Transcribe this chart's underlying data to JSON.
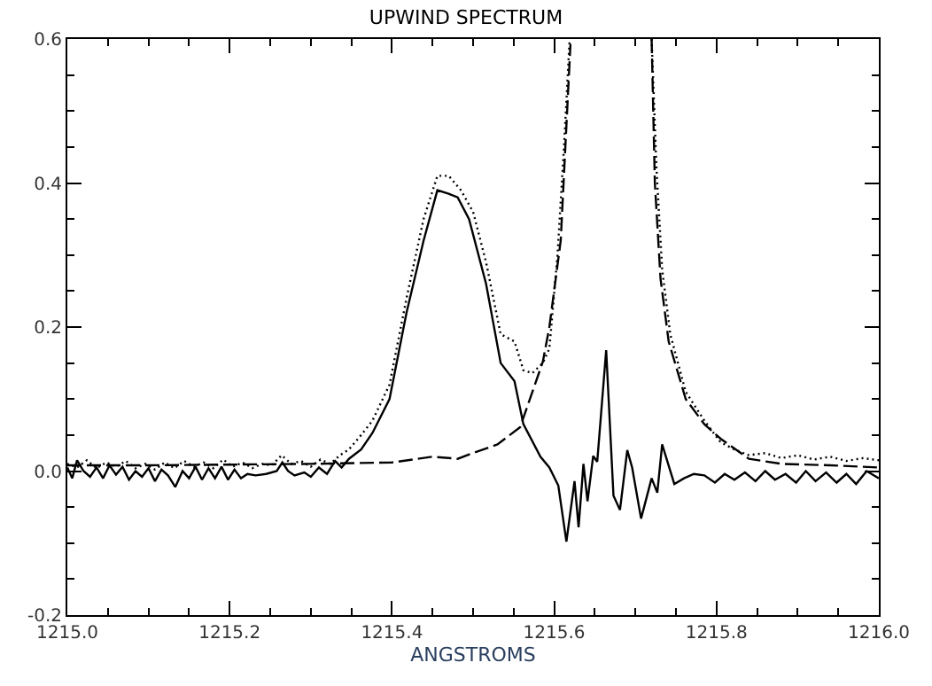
{
  "chart_data": {
    "type": "line",
    "title": "UPWIND SPECTRUM",
    "xlabel": "ANGSTROMS",
    "xlim": [
      1215.0,
      1216.0
    ],
    "xticks": [
      {
        "value": 1215.0,
        "label": "1215.0"
      },
      1215.2,
      1215.4,
      1215.6,
      1215.8,
      {
        "value": 1216.0,
        "label": "1216.0"
      }
    ],
    "ylim": [
      -0.2,
      0.6
    ],
    "yticks": [
      -0.2,
      {
        "value": 0.0,
        "label": "0.0"
      },
      0.2,
      0.4,
      0.6
    ],
    "marker": "none",
    "series": [
      {
        "color": "#000000",
        "line_style": "solid",
        "x": [
          1215.0,
          1215.006,
          1215.012,
          1215.02,
          1215.028,
          1215.036,
          1215.044,
          1215.052,
          1215.06,
          1215.068,
          1215.076,
          1215.084,
          1215.092,
          1215.1,
          1215.108,
          1215.116,
          1215.124,
          1215.133,
          1215.142,
          1215.15,
          1215.158,
          1215.166,
          1215.174,
          1215.182,
          1215.19,
          1215.198,
          1215.206,
          1215.214,
          1215.222,
          1215.232,
          1215.245,
          1215.258,
          1215.265,
          1215.272,
          1215.28,
          1215.292,
          1215.3,
          1215.31,
          1215.32,
          1215.33,
          1215.338,
          1215.347,
          1215.362,
          1215.376,
          1215.397,
          1215.418,
          1215.439,
          1215.456,
          1215.47,
          1215.481,
          1215.495,
          1215.516,
          1215.534,
          1215.551,
          1215.562,
          1215.583,
          1215.594,
          1215.605,
          1215.615,
          1215.625,
          1215.63,
          1215.636,
          1215.641,
          1215.648,
          1215.653,
          1215.664,
          1215.673,
          1215.681,
          1215.69,
          1215.696,
          1215.707,
          1215.72,
          1215.727,
          1215.733,
          1215.748,
          1215.76,
          1215.772,
          1215.785,
          1215.798,
          1215.81,
          1215.822,
          1215.835,
          1215.848,
          1215.86,
          1215.872,
          1215.885,
          1215.898,
          1215.91,
          1215.922,
          1215.935,
          1215.948,
          1215.96,
          1215.972,
          1215.985,
          1216.0
        ],
        "values": [
          0.005,
          -0.01,
          0.015,
          0.0,
          -0.008,
          0.005,
          -0.01,
          0.008,
          -0.005,
          0.006,
          -0.012,
          0.0,
          -0.008,
          0.004,
          -0.014,
          0.002,
          -0.006,
          -0.022,
          0.0,
          -0.01,
          0.006,
          -0.012,
          0.004,
          -0.01,
          0.006,
          -0.012,
          0.002,
          -0.01,
          -0.004,
          -0.006,
          -0.004,
          0.0,
          0.012,
          0.0,
          -0.006,
          -0.002,
          -0.008,
          0.005,
          -0.004,
          0.014,
          0.005,
          0.017,
          0.03,
          0.053,
          0.1,
          0.22,
          0.32,
          0.39,
          0.385,
          0.38,
          0.35,
          0.26,
          0.15,
          0.125,
          0.065,
          0.02,
          0.005,
          -0.02,
          -0.098,
          -0.014,
          -0.078,
          0.01,
          -0.042,
          0.021,
          0.013,
          0.168,
          -0.034,
          -0.054,
          0.029,
          0.005,
          -0.066,
          -0.01,
          -0.03,
          0.037,
          -0.018,
          -0.01,
          -0.004,
          -0.006,
          -0.016,
          -0.004,
          -0.012,
          -0.002,
          -0.014,
          0.0,
          -0.012,
          -0.004,
          -0.016,
          0.0,
          -0.014,
          -0.002,
          -0.016,
          -0.004,
          -0.018,
          0.0,
          -0.01
        ]
      },
      {
        "color": "#000000",
        "line_style": "dotted",
        "x": [
          1215.0,
          1215.012,
          1215.024,
          1215.036,
          1215.048,
          1215.06,
          1215.072,
          1215.084,
          1215.096,
          1215.108,
          1215.12,
          1215.132,
          1215.144,
          1215.156,
          1215.168,
          1215.18,
          1215.192,
          1215.204,
          1215.216,
          1215.228,
          1215.24,
          1215.252,
          1215.264,
          1215.276,
          1215.288,
          1215.3,
          1215.312,
          1215.324,
          1215.336,
          1215.347,
          1215.362,
          1215.376,
          1215.397,
          1215.418,
          1215.439,
          1215.456,
          1215.47,
          1215.485,
          1215.5,
          1215.516,
          1215.534,
          1215.551,
          1215.562,
          1215.573,
          1215.586,
          1215.594,
          1215.604,
          1215.612,
          1215.619
        ],
        "values": [
          0.01,
          0.005,
          0.015,
          0.004,
          0.012,
          0.006,
          0.014,
          0.004,
          0.01,
          0.002,
          0.012,
          0.004,
          0.014,
          0.006,
          0.012,
          0.004,
          0.016,
          0.006,
          0.012,
          0.004,
          0.01,
          0.008,
          0.022,
          0.01,
          0.014,
          0.006,
          0.016,
          0.01,
          0.022,
          0.03,
          0.05,
          0.07,
          0.12,
          0.24,
          0.35,
          0.41,
          0.41,
          0.39,
          0.36,
          0.29,
          0.19,
          0.18,
          0.14,
          0.136,
          0.15,
          0.17,
          0.3,
          0.45,
          0.6
        ]
      },
      {
        "color": "#000000",
        "line_style": "dotted",
        "x": [
          1215.72,
          1215.726,
          1215.733,
          1215.743,
          1215.762,
          1215.785,
          1215.805,
          1215.822,
          1215.84,
          1215.86,
          1215.88,
          1215.9,
          1215.92,
          1215.94,
          1215.96,
          1215.98,
          1216.0
        ],
        "values": [
          0.6,
          0.42,
          0.28,
          0.19,
          0.11,
          0.07,
          0.04,
          0.03,
          0.022,
          0.025,
          0.018,
          0.022,
          0.016,
          0.02,
          0.014,
          0.018,
          0.015
        ]
      },
      {
        "color": "#000000",
        "line_style": "dashed",
        "x": [
          1215.0,
          1215.1,
          1215.2,
          1215.3,
          1215.4,
          1215.45,
          1215.481,
          1215.5,
          1215.53,
          1215.558,
          1215.586,
          1215.594,
          1215.608,
          1215.615,
          1215.62
        ],
        "values": [
          0.008,
          0.008,
          0.009,
          0.01,
          0.012,
          0.02,
          0.017,
          0.025,
          0.037,
          0.061,
          0.152,
          0.2,
          0.32,
          0.48,
          0.593
        ]
      },
      {
        "color": "#000000",
        "line_style": "dashed",
        "x": [
          1215.72,
          1215.724,
          1215.731,
          1215.741,
          1215.762,
          1215.785,
          1215.805,
          1215.84,
          1215.88,
          1215.94,
          1216.0
        ],
        "values": [
          0.6,
          0.4,
          0.267,
          0.18,
          0.1,
          0.065,
          0.045,
          0.017,
          0.01,
          0.008,
          0.005
        ]
      }
    ]
  }
}
